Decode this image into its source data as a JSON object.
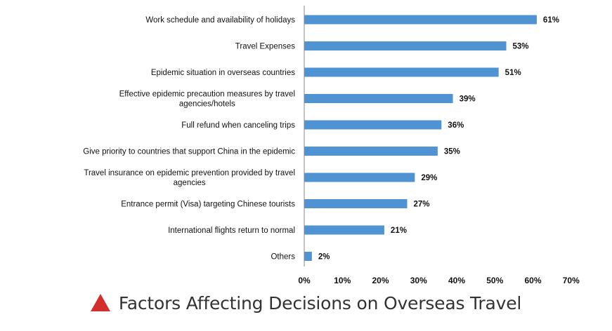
{
  "caption": {
    "text": "Factors Affecting Decisions on Overseas Travel",
    "icon": "red-triangle-icon",
    "icon_color": "#d32f2f"
  },
  "chart_data": {
    "type": "bar",
    "orientation": "horizontal",
    "bar_color": "#4f93d3",
    "categories": [
      "Work schedule and availability of holidays",
      "Travel Expenses",
      "Epidemic situation in overseas countries",
      "Effective epidemic precaution measures by travel agencies/hotels",
      "Full refund when canceling trips",
      "Give priority to countries that support China in the epidemic",
      "Travel insurance on epidemic prevention provided by travel agencies",
      "Entrance permit (Visa) targeting Chinese tourists",
      "International flights return to normal",
      "Others"
    ],
    "category_label_lines": [
      [
        "Work schedule and availability of holidays"
      ],
      [
        "Travel Expenses"
      ],
      [
        "Epidemic situation in overseas countries"
      ],
      [
        "Effective epidemic precaution measures by travel",
        "agencies/hotels"
      ],
      [
        "Full refund when canceling trips"
      ],
      [
        "Give priority to countries that support China in the epidemic"
      ],
      [
        "Travel insurance on epidemic prevention provided by travel",
        "agencies"
      ],
      [
        "Entrance permit (Visa) targeting Chinese tourists"
      ],
      [
        "International flights return to normal"
      ],
      [
        "Others"
      ]
    ],
    "values": [
      61,
      53,
      51,
      39,
      36,
      35,
      29,
      27,
      21,
      2
    ],
    "value_labels": [
      "61%",
      "53%",
      "51%",
      "39%",
      "36%",
      "35%",
      "29%",
      "27%",
      "21%",
      "2%"
    ],
    "xlim": [
      0,
      70
    ],
    "xticks": [
      0,
      10,
      20,
      30,
      40,
      50,
      60,
      70
    ],
    "xtick_labels": [
      "0%",
      "10%",
      "20%",
      "30%",
      "40%",
      "50%",
      "60%",
      "70%"
    ],
    "title": "",
    "xlabel": "",
    "ylabel": "",
    "grid": false,
    "legend": "none"
  }
}
